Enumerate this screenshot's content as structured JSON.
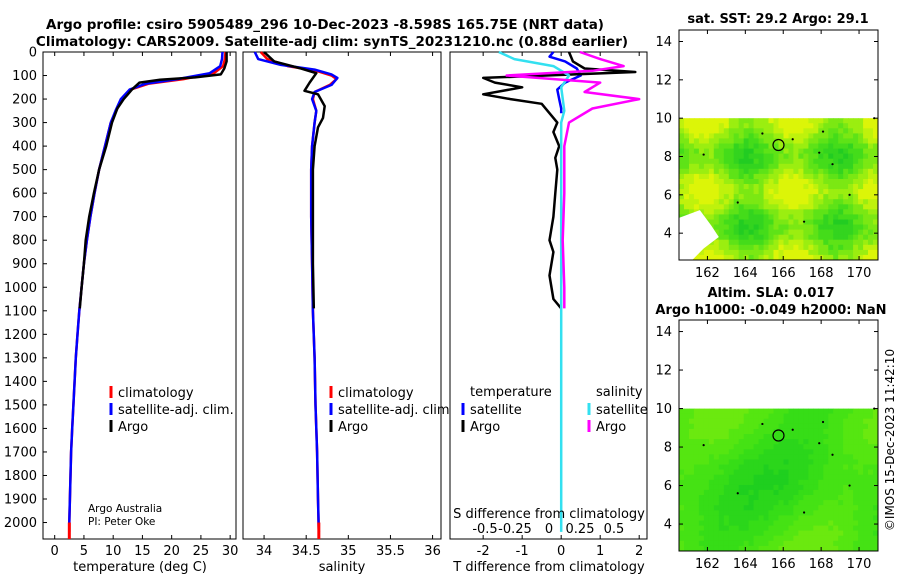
{
  "header": {
    "title_line1": "Argo profile: csiro 5905489_296 10-Dec-2023 -8.598S 165.75E (NRT data)",
    "title_line2": "Climatology: CARS2009. Satellite-adj clim: synTS_20231210.nc (0.88d earlier)"
  },
  "colors": {
    "climatology": "#ff0000",
    "satellite_adj": "#0000ff",
    "argo": "#000000",
    "s_satellite": "#33e0f0",
    "s_argo": "#ff00ff"
  },
  "chart_data": [
    {
      "type": "line",
      "id": "temperature",
      "xlabel": "temperature (deg C)",
      "xticks": [
        "0",
        "5",
        "10",
        "15",
        "20",
        "25",
        "30"
      ],
      "xlim": [
        -2,
        31
      ],
      "ylim": [
        0,
        2070
      ],
      "yticks": [
        "0",
        "100",
        "200",
        "300",
        "400",
        "500",
        "600",
        "700",
        "800",
        "900",
        "1000",
        "1100",
        "1200",
        "1300",
        "1400",
        "1500",
        "1600",
        "1700",
        "1800",
        "1900",
        "2000"
      ],
      "legend": [
        "climatology",
        "satellite-adj. clim.",
        "Argo"
      ],
      "annotation1": "Argo Australia",
      "annotation2": "PI: Peter Oke",
      "series": [
        {
          "name": "climatology",
          "color": "#ff0000",
          "points": [
            [
              29.2,
              0
            ],
            [
              29.1,
              30
            ],
            [
              28.8,
              60
            ],
            [
              27.2,
              90
            ],
            [
              22,
              115
            ],
            [
              16,
              135
            ],
            [
              13,
              160
            ],
            [
              11.5,
              200
            ],
            [
              10.5,
              250
            ],
            [
              9.6,
              300
            ],
            [
              8.6,
              400
            ],
            [
              7.6,
              500
            ],
            [
              6.8,
              600
            ],
            [
              6.1,
              700
            ],
            [
              5.5,
              800
            ],
            [
              5.0,
              900
            ],
            [
              4.6,
              1000
            ],
            [
              4.2,
              1100
            ],
            [
              3.9,
              1200
            ],
            [
              3.6,
              1300
            ],
            [
              3.4,
              1400
            ],
            [
              3.2,
              1500
            ],
            [
              3.0,
              1600
            ],
            [
              2.8,
              1700
            ],
            [
              2.7,
              1800
            ],
            [
              2.6,
              1900
            ],
            [
              2.5,
              2000
            ],
            [
              2.5,
              2040
            ]
          ]
        },
        {
          "name": "satellite-adj. clim.",
          "color": "#0000ff",
          "points": [
            [
              28.7,
              0
            ],
            [
              28.6,
              30
            ],
            [
              28.3,
              60
            ],
            [
              26.5,
              90
            ],
            [
              21,
              115
            ],
            [
              15.5,
              135
            ],
            [
              12.8,
              160
            ],
            [
              11.3,
              200
            ],
            [
              10.4,
              250
            ],
            [
              9.6,
              300
            ],
            [
              8.6,
              400
            ],
            [
              7.6,
              500
            ],
            [
              6.8,
              600
            ],
            [
              6.1,
              700
            ],
            [
              5.5,
              800
            ],
            [
              5.0,
              900
            ],
            [
              4.6,
              1000
            ],
            [
              4.2,
              1100
            ],
            [
              3.9,
              1200
            ],
            [
              3.6,
              1300
            ],
            [
              3.4,
              1400
            ],
            [
              3.2,
              1500
            ],
            [
              3.0,
              1600
            ],
            [
              2.8,
              1700
            ],
            [
              2.7,
              1800
            ],
            [
              2.6,
              1900
            ],
            [
              2.5,
              2000
            ],
            [
              2.5,
              2040
            ]
          ]
        },
        {
          "name": "Argo",
          "color": "#000000",
          "points": [
            [
              29.4,
              0
            ],
            [
              29.4,
              40
            ],
            [
              29.0,
              70
            ],
            [
              28.4,
              95
            ],
            [
              24,
              108
            ],
            [
              18,
              118
            ],
            [
              14.5,
              130
            ],
            [
              13.2,
              160
            ],
            [
              11.8,
              200
            ],
            [
              10.7,
              240
            ],
            [
              9.8,
              300
            ],
            [
              8.8,
              400
            ],
            [
              7.6,
              500
            ],
            [
              6.7,
              600
            ],
            [
              5.9,
              700
            ],
            [
              5.3,
              800
            ],
            [
              5.0,
              900
            ],
            [
              4.6,
              1000
            ],
            [
              4.3,
              1090
            ]
          ]
        }
      ]
    },
    {
      "type": "line",
      "id": "salinity",
      "xlabel": "salinity",
      "xticks": [
        "34",
        "34.5",
        "35",
        "35.5",
        "36"
      ],
      "xlim": [
        33.75,
        36.1
      ],
      "ylim": [
        0,
        2070
      ],
      "legend": [
        "climatology",
        "satellite-adj. clim.",
        "Argo"
      ],
      "series": [
        {
          "name": "climatology",
          "color": "#ff0000",
          "points": [
            [
              33.96,
              0
            ],
            [
              34.04,
              30
            ],
            [
              34.28,
              60
            ],
            [
              34.62,
              80
            ],
            [
              34.8,
              100
            ],
            [
              34.86,
              115
            ],
            [
              34.78,
              140
            ],
            [
              34.6,
              170
            ],
            [
              34.58,
              200
            ],
            [
              34.62,
              250
            ],
            [
              34.6,
              300
            ],
            [
              34.57,
              400
            ],
            [
              34.56,
              500
            ],
            [
              34.56,
              700
            ],
            [
              34.57,
              900
            ],
            [
              34.58,
              1100
            ],
            [
              34.6,
              1300
            ],
            [
              34.61,
              1500
            ],
            [
              34.63,
              1700
            ],
            [
              34.64,
              1900
            ],
            [
              34.65,
              2040
            ]
          ]
        },
        {
          "name": "satellite-adj. clim.",
          "color": "#0000ff",
          "points": [
            [
              33.89,
              0
            ],
            [
              33.93,
              30
            ],
            [
              34.2,
              55
            ],
            [
              34.6,
              75
            ],
            [
              34.8,
              95
            ],
            [
              34.87,
              110
            ],
            [
              34.8,
              140
            ],
            [
              34.6,
              170
            ],
            [
              34.57,
              200
            ],
            [
              34.62,
              250
            ],
            [
              34.6,
              300
            ],
            [
              34.57,
              400
            ],
            [
              34.56,
              500
            ],
            [
              34.56,
              700
            ],
            [
              34.57,
              900
            ],
            [
              34.58,
              1100
            ],
            [
              34.6,
              1300
            ],
            [
              34.61,
              1500
            ],
            [
              34.63,
              1700
            ],
            [
              34.64,
              1900
            ],
            [
              34.65,
              2040
            ]
          ]
        },
        {
          "name": "Argo",
          "color": "#000000",
          "points": [
            [
              34.0,
              0
            ],
            [
              34.12,
              40
            ],
            [
              34.44,
              70
            ],
            [
              34.62,
              90
            ],
            [
              34.54,
              130
            ],
            [
              34.48,
              165
            ],
            [
              34.64,
              180
            ],
            [
              34.72,
              230
            ],
            [
              34.7,
              280
            ],
            [
              34.64,
              320
            ],
            [
              34.6,
              400
            ],
            [
              34.58,
              500
            ],
            [
              34.58,
              700
            ],
            [
              34.58,
              900
            ],
            [
              34.59,
              1090
            ]
          ]
        }
      ]
    },
    {
      "type": "line",
      "id": "differences",
      "xlabel": "T difference from climatology",
      "xticks": [
        "-2",
        "-1",
        "0",
        "1",
        "2"
      ],
      "xlim": [
        -2.85,
        2.2
      ],
      "top_axis_label": "S difference from climatology",
      "top_ticks": [
        "-0.5",
        "-0.25",
        "0",
        "0.25",
        "0.5"
      ],
      "top_xlim": [
        -0.5,
        0.5
      ],
      "legend_temperature_title": "temperature",
      "legend_salinity_title": "salinity",
      "legend_labels": [
        "satellite",
        "Argo"
      ],
      "series": [
        {
          "name": "T satellite",
          "color": "#0000ff",
          "points": [
            [
              -0.2,
              0
            ],
            [
              -0.3,
              20
            ],
            [
              0.1,
              40
            ],
            [
              0.4,
              70
            ],
            [
              0.5,
              100
            ],
            [
              0.1,
              130
            ],
            [
              -0.1,
              160
            ],
            [
              -0.05,
              200
            ],
            [
              0,
              240
            ],
            [
              0,
              260
            ]
          ]
        },
        {
          "name": "T Argo",
          "color": "#000000",
          "points": [
            [
              0.2,
              0
            ],
            [
              0.3,
              40
            ],
            [
              0.6,
              70
            ],
            [
              1.9,
              85
            ],
            [
              -2.0,
              110
            ],
            [
              -1.7,
              130
            ],
            [
              -1.0,
              150
            ],
            [
              -2.0,
              180
            ],
            [
              -1.3,
              200
            ],
            [
              -0.5,
              220
            ],
            [
              -0.3,
              260
            ],
            [
              -0.1,
              300
            ],
            [
              -0.2,
              340
            ],
            [
              -0.05,
              400
            ],
            [
              -0.15,
              450
            ],
            [
              -0.1,
              500
            ],
            [
              -0.15,
              600
            ],
            [
              -0.2,
              700
            ],
            [
              -0.3,
              800
            ],
            [
              -0.2,
              850
            ],
            [
              -0.3,
              950
            ],
            [
              -0.2,
              1050
            ],
            [
              0,
              1090
            ]
          ]
        },
        {
          "name": "S satellite",
          "color": "#33e0f0",
          "points": [
            [
              -0.4,
              0
            ],
            [
              -0.3,
              30
            ],
            [
              -0.05,
              60
            ],
            [
              0.05,
              100
            ],
            [
              0,
              150
            ],
            [
              0.02,
              250
            ],
            [
              0,
              300
            ],
            [
              0,
              2040
            ]
          ]
        },
        {
          "name": "S Argo",
          "color": "#ff00ff",
          "points": [
            [
              0.12,
              0
            ],
            [
              0.25,
              30
            ],
            [
              0.4,
              60
            ],
            [
              0.2,
              80
            ],
            [
              -0.35,
              100
            ],
            [
              0.25,
              130
            ],
            [
              0.15,
              170
            ],
            [
              0.5,
              200
            ],
            [
              0.2,
              240
            ],
            [
              0.05,
              300
            ],
            [
              0.02,
              400
            ],
            [
              0.02,
              600
            ],
            [
              0.01,
              800
            ],
            [
              0.02,
              1000
            ],
            [
              0.02,
              1090
            ]
          ]
        }
      ]
    },
    {
      "type": "heatmap",
      "id": "sst_map",
      "title": "sat. SST: 29.2 Argo: 29.1",
      "xticks": [
        "162",
        "164",
        "166",
        "168",
        "170"
      ],
      "yticks": [
        "4",
        "6",
        "8",
        "10",
        "12",
        "14"
      ],
      "xlim": [
        160.5,
        171
      ],
      "ylim": [
        2.6,
        14.6
      ],
      "data_top": 10,
      "marker": {
        "lon": 165.75,
        "lat": 8.6
      }
    },
    {
      "type": "heatmap",
      "id": "sla_map",
      "title_line1": "Altim. SLA: 0.017",
      "title_line2": "Argo h1000: -0.049 h2000: NaN",
      "xticks": [
        "162",
        "164",
        "166",
        "168",
        "170"
      ],
      "yticks": [
        "4",
        "6",
        "8",
        "10",
        "12",
        "14"
      ],
      "xlim": [
        160.5,
        171
      ],
      "ylim": [
        2.6,
        14.6
      ],
      "data_top": 10,
      "marker": {
        "lon": 165.75,
        "lat": 8.6
      }
    }
  ],
  "footer": {
    "timestamp": "©IMOS 15-Dec-2023 11:42:10"
  }
}
